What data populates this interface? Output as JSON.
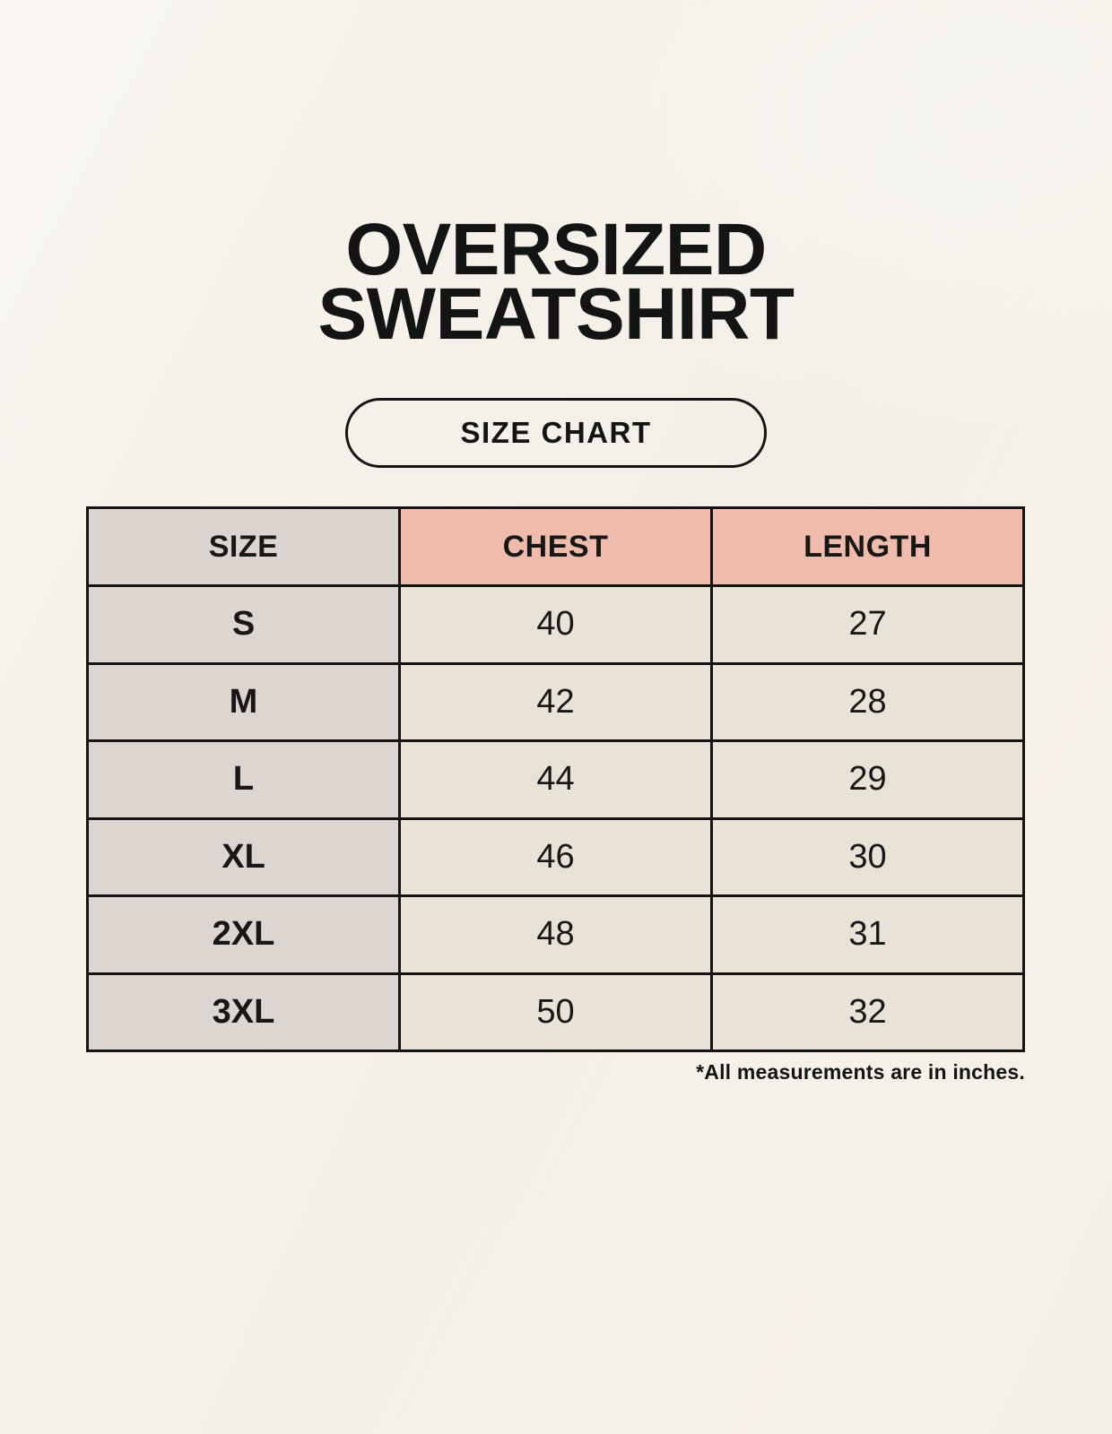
{
  "page": {
    "title_line1": "OVERSIZED",
    "title_line2": "SWEATSHIRT",
    "badge_label": "SIZE CHART",
    "footnote": "*All measurements are in inches."
  },
  "colors": {
    "background_cream": "#f8f4ec",
    "header_accent_salmon": "#efbcab",
    "label_column_taupe": "#ddd5d0",
    "data_cell_cream": "#e9e2d7",
    "border_black": "#141414",
    "text_black": "#141414"
  },
  "chart_data": {
    "type": "table",
    "title": "Oversized Sweatshirt Size Chart",
    "units": "inches",
    "columns": [
      "SIZE",
      "CHEST",
      "LENGTH"
    ],
    "rows": [
      {
        "size": "S",
        "chest": 40,
        "length": 27
      },
      {
        "size": "M",
        "chest": 42,
        "length": 28
      },
      {
        "size": "L",
        "chest": 44,
        "length": 29
      },
      {
        "size": "XL",
        "chest": 46,
        "length": 30
      },
      {
        "size": "2XL",
        "chest": 48,
        "length": 31
      },
      {
        "size": "3XL",
        "chest": 50,
        "length": 32
      }
    ]
  }
}
